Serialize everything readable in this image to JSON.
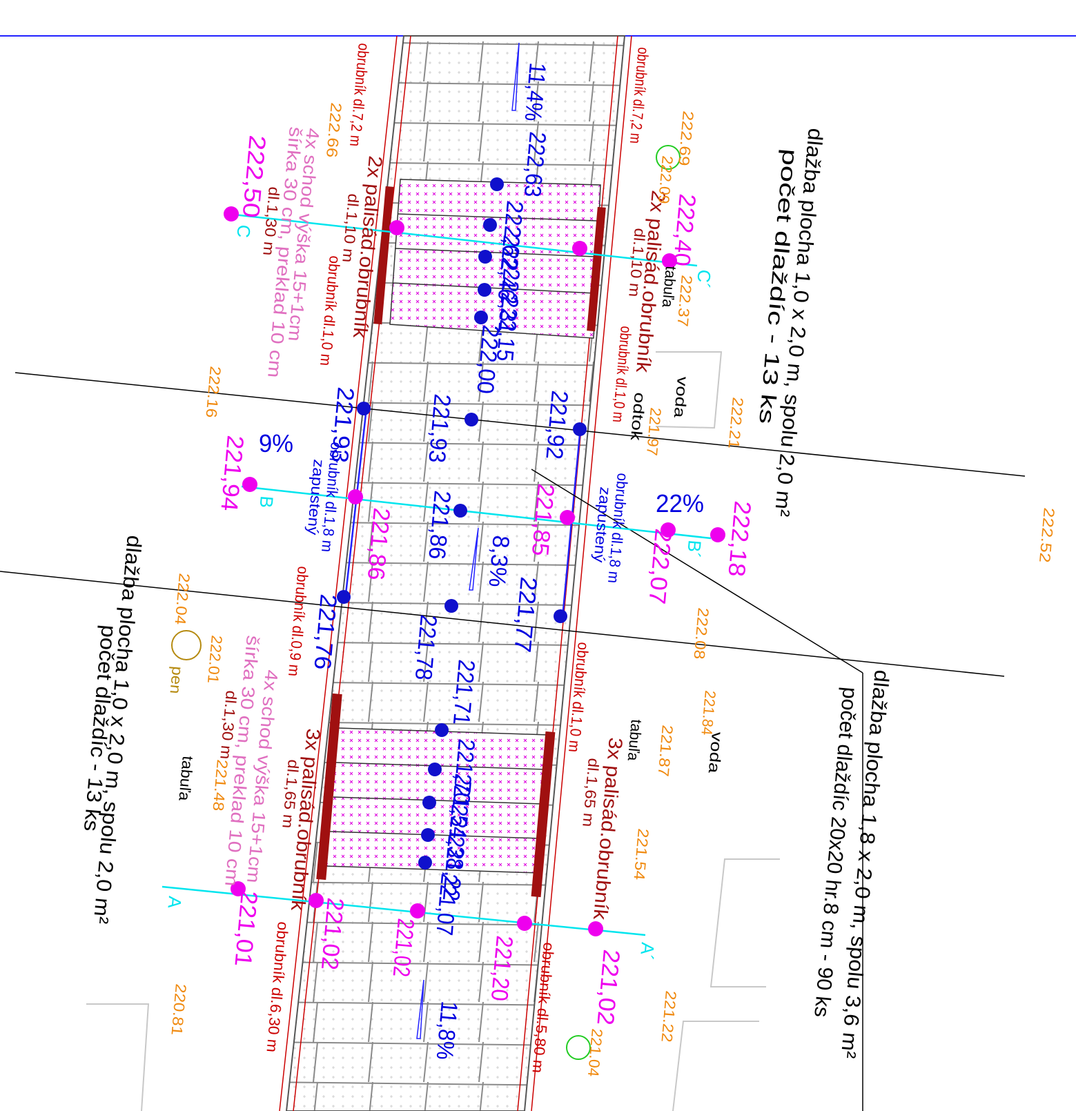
{
  "colors": {
    "elevation_orange": "#f08a10",
    "elevation_magenta": "#ee00ee",
    "elevation_blue": "#0000e0",
    "curb_red": "#cc0000",
    "palisade_dark": "#a01010",
    "section_cyan": "#00e5ee",
    "step_pink": "#e070c0",
    "border_blue": "#2222ff",
    "paving_grey": "#909090"
  },
  "paving_notes": {
    "upper_right": {
      "line1": "dlažba plocha 1,0 x 2,0 m, spolu 2,0 m²",
      "line2": "počet dlaždíc - 13 ks"
    },
    "lower_left": {
      "line1": "dlažba plocha 1,0 x 2,0 m, spolu 2,0 m²",
      "line2": "počet dlaždíc - 13 ks"
    },
    "right": {
      "line1": "dlažba plocha 1,8 x 2,0 m, spolu 3,6 m²",
      "line2": "počet dlaždíc 20x20 hr.8 cm - 90 ks"
    }
  },
  "curb_labels": {
    "upper_left": "obrubník dl.7,2 m",
    "upper_right": "obrubník dl.7,2 m",
    "mid_left": "obrubník dl.1,0 m",
    "mid_right": "obrubník dl.1,0 m",
    "left_0_9": "obrubník dl.0,9 m",
    "right_1_0": "obrubník dl.1,0 m",
    "bottom_left": "obrubník dl.6,30 m",
    "bottom_right": "obrubník dl.5,80 m",
    "sunken_left_1": "obrubník dl.1,8 m",
    "sunken_left_2": "zapustený",
    "sunken_right_1": "obrubník dl.1,8 m",
    "sunken_right_2": "zapustený"
  },
  "palisade_labels": {
    "upper_left": "2x palisád.obrubník",
    "upper_left_len": "dl.1,10 m",
    "upper_right": "2x palisád.obrubník",
    "upper_right_len": "dl.1,10 m",
    "lower_left": "3x palisád.obrubník",
    "lower_left_len": "dl.1,65 m",
    "lower_right": "3x palisád.obrubník",
    "lower_right_len": "dl.1,65 m"
  },
  "step_labels": {
    "upper_1": "4x schod  výška 15+1cm",
    "upper_2": "šírka 30 cm, preklad 10 cm",
    "upper_3": "dl.1,30 m",
    "lower_1": "4x schod  výška 15+1cm",
    "lower_2": "šírka 30 cm, preklad 10 cm",
    "lower_3": "dl.1,30 m"
  },
  "sections": {
    "A": "A",
    "A_prime": "A´",
    "B": "B",
    "B_prime": "B´",
    "C": "C",
    "C_prime": "C´"
  },
  "slopes": {
    "top": "11,4%",
    "mid": "8,3%",
    "bottom": "11,8%",
    "left": "9%",
    "right": "22%"
  },
  "misc_labels": {
    "voda_upper": "voda",
    "voda_lower": "voda",
    "odtok": "odtok",
    "tabula_upper": "tabuľa",
    "tabula_left": "tabuľa",
    "tabula_right": "tabuľa",
    "pen": "pen"
  },
  "elevations_orange": [
    "222.69",
    "222.66",
    "222.21",
    "222.16",
    "222.52",
    "222.37",
    "222.08",
    "221.84",
    "221.87",
    "221.54",
    "220.81",
    "221.22",
    "222.04",
    "222.01",
    "221.48",
    "222.09",
    "221.97",
    "221.04"
  ],
  "elevations_magenta": [
    "222,50",
    "222,40",
    "221,94",
    "222,18",
    "222,07",
    "221,86",
    "221,85",
    "221,01",
    "221,02",
    "221,02",
    "221,20",
    "221,02"
  ],
  "elevations_blue": [
    "222,63",
    "222,62",
    "222,46",
    "222,31",
    "222,15",
    "222,00",
    "221,93",
    "221,92",
    "221,93",
    "221,86",
    "221,77",
    "221,76",
    "221,78",
    "221,71",
    "221,70",
    "221,54",
    "221,38",
    "221,22",
    "221,07"
  ]
}
